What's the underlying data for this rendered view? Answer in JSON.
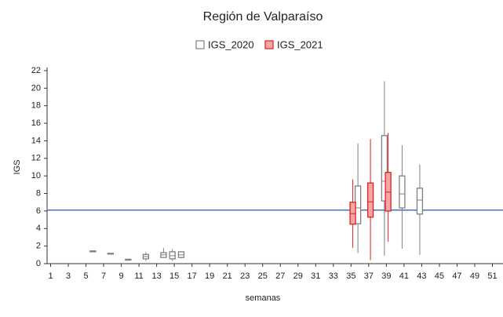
{
  "chart_data": {
    "type": "boxplot",
    "title": "Región de Valparaíso",
    "x_label": "semanas",
    "y_label": "IGS",
    "xlim": [
      0.6,
      52.2
    ],
    "xticks": [
      1,
      3,
      5,
      7,
      9,
      11,
      13,
      15,
      17,
      19,
      21,
      23,
      25,
      27,
      29,
      31,
      33,
      35,
      37,
      39,
      41,
      43,
      45,
      47,
      49,
      51
    ],
    "ylim": [
      0,
      22
    ],
    "yticks": [
      0,
      2,
      4,
      6,
      8,
      10,
      12,
      14,
      16,
      18,
      20,
      22
    ],
    "reference_line": {
      "value": 6.1,
      "color": "#4472c4"
    },
    "series": [
      {
        "name": "IGS_2020",
        "color": "#808080",
        "fill": "#ffffff",
        "x": [
          6,
          8,
          10,
          12,
          14,
          15,
          16,
          36,
          39,
          41,
          43
        ],
        "whisker_low": [
          1.3,
          1.1,
          0.35,
          0.3,
          0.7,
          0.3,
          0.6,
          1.2,
          0.9,
          1.7,
          1.0
        ],
        "q1": [
          1.35,
          1.12,
          0.4,
          0.55,
          0.7,
          0.55,
          0.7,
          4.55,
          7.15,
          6.35,
          5.65
        ],
        "median": [
          1.4,
          1.15,
          0.45,
          0.8,
          1.0,
          0.9,
          1.0,
          6.35,
          9.4,
          7.95,
          7.25
        ],
        "q3": [
          1.45,
          1.18,
          0.5,
          1.05,
          1.25,
          1.35,
          1.35,
          8.85,
          14.6,
          10.0,
          8.6
        ],
        "whisker_high": [
          1.5,
          1.2,
          0.55,
          1.3,
          1.8,
          1.65,
          1.4,
          13.7,
          20.8,
          13.5,
          11.3
        ]
      },
      {
        "name": "IGS_2021",
        "color": "#e02020",
        "fill": "#f4a6a6",
        "x": [
          35,
          37,
          39
        ],
        "whisker_low": [
          1.8,
          0.4,
          2.5
        ],
        "q1": [
          4.5,
          5.3,
          6.0
        ],
        "median": [
          5.7,
          7.05,
          8.15
        ],
        "q3": [
          7.0,
          9.2,
          10.4
        ],
        "whisker_high": [
          9.6,
          14.2,
          14.9
        ]
      }
    ]
  }
}
